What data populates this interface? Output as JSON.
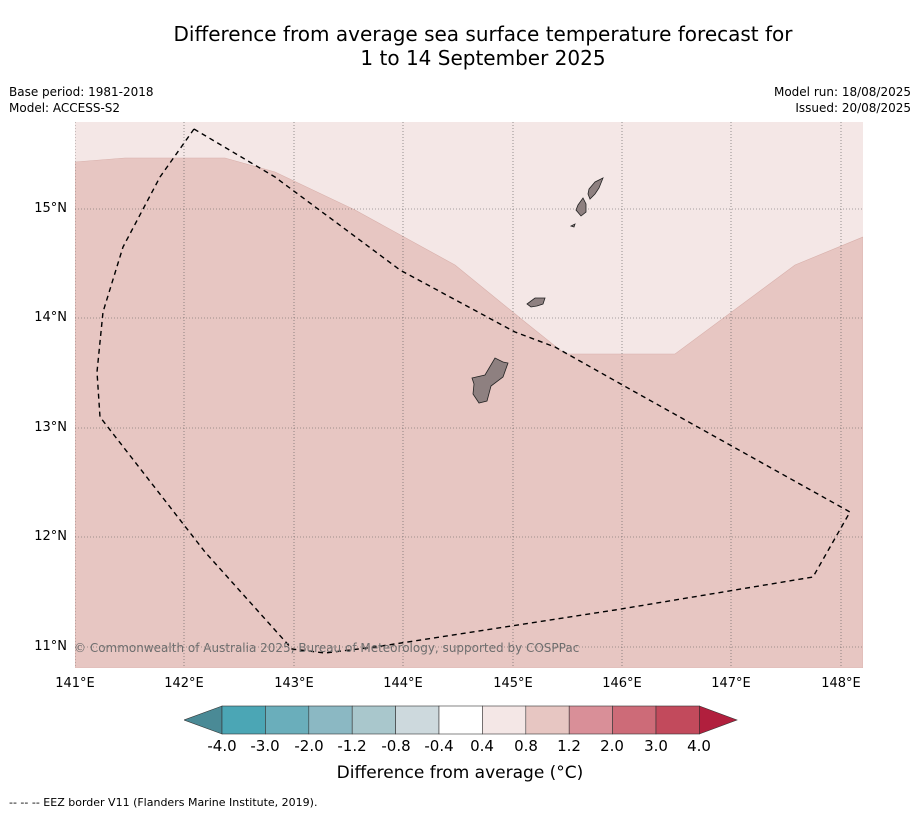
{
  "title_line1": "Difference from average sea surface temperature forecast for",
  "title_line2": "1 to 14 September 2025",
  "meta": {
    "base_period": "Base period: 1981-2018",
    "model": "Model: ACCESS-S2",
    "model_run": "Model run: 18/08/2025",
    "issued": "Issued: 20/08/2025"
  },
  "map": {
    "lon_range": [
      141.0,
      148.2
    ],
    "lat_range": [
      10.8,
      15.8
    ],
    "lat_labels": [
      "15°N",
      "14°N",
      "13°N",
      "12°N",
      "11°N"
    ],
    "lon_labels": [
      "141°E",
      "142°E",
      "143°E",
      "144°E",
      "145°E",
      "146°E",
      "147°E",
      "148°E"
    ],
    "copyright": "© Commonwealth of Australia 2025, Bureau of Meteorology, supported by COSPPac",
    "colors": {
      "anom_0_4_to_0_8": "#f4e7e6",
      "anom_0_8_to_1_2": "#e7c6c2",
      "land": "#8e8080"
    }
  },
  "colorbar": {
    "title": "Difference from average (°C)",
    "tick_labels": [
      "-4.0",
      "-3.0",
      "-2.0",
      "-1.2",
      "-0.8",
      "-0.4",
      "0.4",
      "0.8",
      "1.2",
      "2.0",
      "3.0",
      "4.0"
    ],
    "colors": [
      "#4a8a96",
      "#4ba6b5",
      "#6aaebb",
      "#8bb8c3",
      "#a9c7cc",
      "#cdd9dd",
      "#ffffff",
      "#f4e7e6",
      "#e7c6c2",
      "#d98f98",
      "#cd6b78",
      "#c24a5c",
      "#b11f3d"
    ]
  },
  "footer": "--  --  -- EEZ border V11 (Flanders Marine Institute, 2019)."
}
